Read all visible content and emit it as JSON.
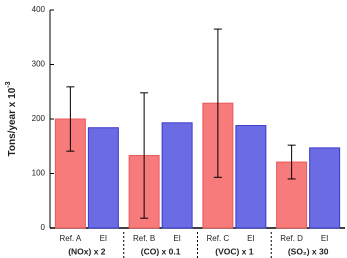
{
  "chart_data": {
    "type": "bar",
    "ylabel": {
      "text": "Tons/year x 10",
      "sup": "-3"
    },
    "categories": [
      "(NOx) x 2",
      "(CO) x 0.1",
      "(VOC) x 1",
      "(SO₂) x 30"
    ],
    "series": [
      {
        "color": "#f77b7b",
        "values": [
          200,
          133,
          229,
          121
        ],
        "errors": [
          59,
          115,
          136,
          31
        ],
        "bar_labels": [
          "Ref. A",
          "Ref. B",
          "Ref. C",
          "Ref. D"
        ]
      },
      {
        "color": "#6b6be3",
        "values": [
          184,
          193,
          188,
          147
        ],
        "bar_labels": [
          "EI",
          "EI",
          "EI",
          "EI"
        ]
      }
    ],
    "ylim": [
      0,
      400
    ],
    "yticks": [
      0,
      100,
      200,
      300,
      400
    ]
  }
}
